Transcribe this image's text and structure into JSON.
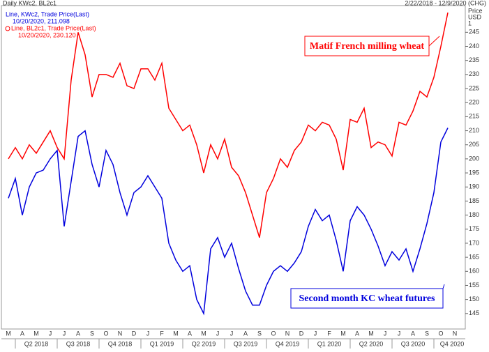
{
  "chart_data": {
    "type": "line",
    "title": "Daily KWc2, BL2c1",
    "date_range": "2/22/2018 - 12/9/2020 (CHG)",
    "price_label": "Price",
    "unit_label": "USD",
    "unit_scale": "1",
    "legend_text": [
      "Line, KWc2, Trade Price(Last)",
      "10/20/2020, 211.098",
      "Line, BL2c1, Trade Price(Last)",
      "10/20/2020, 230.120"
    ],
    "annotations": [
      "Matif French milling wheat",
      "Second month KC wheat futures"
    ],
    "categories": [
      "M",
      null,
      "A",
      null,
      "M",
      null,
      "J",
      null,
      "J",
      null,
      "A",
      null,
      "S",
      null,
      "O",
      null,
      "N",
      null,
      "D",
      null,
      "J",
      null,
      "F",
      null,
      "M",
      null,
      "A",
      null,
      "M",
      null,
      "J",
      null,
      "J",
      null,
      "A",
      null,
      "S",
      null,
      "O",
      null,
      "N",
      null,
      "D",
      null,
      "J",
      null,
      "F",
      null,
      "M",
      null,
      "A",
      null,
      "M",
      null,
      "J",
      null,
      "J",
      null,
      "A",
      null,
      "S",
      null,
      "O",
      null,
      "N"
    ],
    "quarters": [
      "Q2 2018",
      "Q3 2018",
      "Q4 2018",
      "Q1 2019",
      "Q2 2019",
      "Q3 2019",
      "Q4 2019",
      "Q1 2020",
      "Q2 2020",
      "Q3 2020",
      "Q4 2020"
    ],
    "series": [
      {
        "name": "BL2c1",
        "color": "#ff0000",
        "values": [
          200,
          204,
          200,
          205,
          202,
          206,
          210,
          204,
          200,
          228,
          245,
          237,
          222,
          230,
          230,
          229,
          234,
          226,
          225,
          232,
          232,
          228,
          234,
          218,
          214,
          210,
          212,
          205,
          195,
          205,
          200,
          207,
          197,
          194,
          188,
          180,
          172,
          188,
          193,
          200,
          197,
          203,
          206,
          212,
          210,
          213,
          212,
          207,
          196,
          214,
          213,
          218,
          204,
          206,
          205,
          201,
          213,
          212,
          217,
          224,
          222,
          229,
          240,
          252,
          null
        ]
      },
      {
        "name": "KWc2",
        "color": "#0000dd",
        "values": [
          186,
          193,
          180,
          190,
          195,
          196,
          200,
          203,
          176,
          192,
          208,
          210,
          198,
          190,
          203,
          198,
          188,
          180,
          188,
          190,
          194,
          190,
          186,
          170,
          164,
          160,
          162,
          150,
          145,
          168,
          172,
          165,
          170,
          161,
          153,
          148,
          148,
          155,
          160,
          162,
          160,
          163,
          167,
          176,
          182,
          178,
          180,
          171,
          160,
          178,
          183,
          180,
          175,
          169,
          162,
          167,
          164,
          168,
          160,
          168,
          177,
          188,
          206,
          211,
          null
        ]
      }
    ],
    "ylim": [
      139.5,
      254.5
    ],
    "yticks": [
      145,
      150,
      155,
      160,
      165,
      170,
      175,
      180,
      185,
      190,
      195,
      200,
      205,
      210,
      215,
      220,
      225,
      230,
      235,
      240,
      245
    ]
  }
}
